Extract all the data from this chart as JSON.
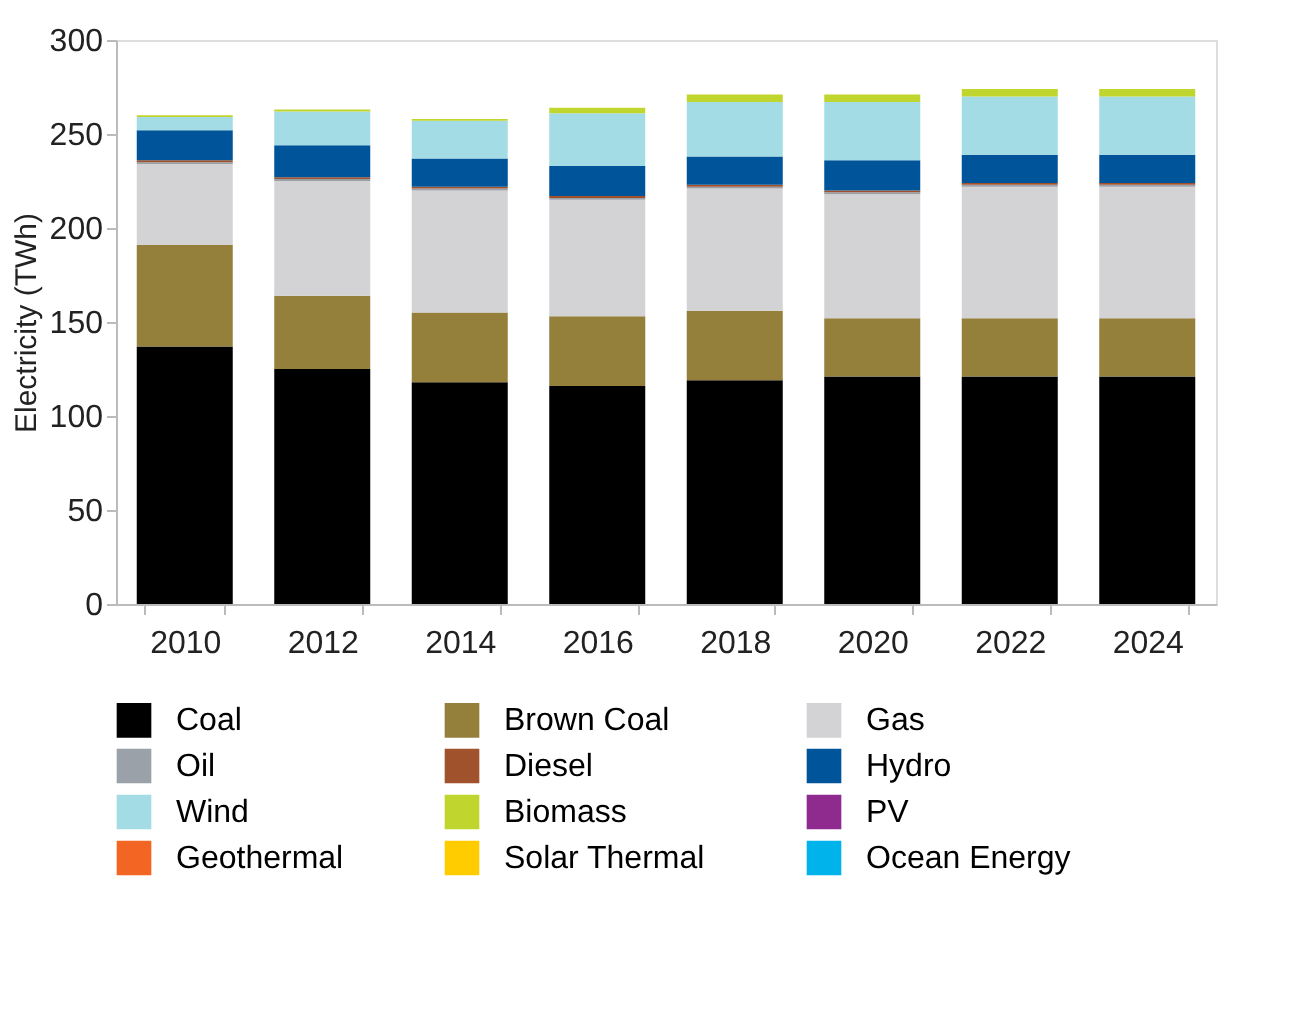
{
  "chart_data": {
    "type": "bar",
    "stacked": true,
    "ylabel": "Electricity (TWh)",
    "categories": [
      "2010",
      "2012",
      "2014",
      "2016",
      "2018",
      "2020",
      "2022",
      "2024"
    ],
    "ylim": [
      0,
      300
    ],
    "yticks": [
      0,
      50,
      100,
      150,
      200,
      250,
      300
    ],
    "grid": false,
    "legend": "bottom",
    "series": [
      {
        "name": "Coal",
        "color": "#000000",
        "values": [
          137,
          125,
          118,
          116,
          119,
          121,
          121,
          121
        ]
      },
      {
        "name": "Brown Coal",
        "color": "#947f3b",
        "values": [
          54,
          39,
          37,
          37,
          37,
          31,
          31,
          31
        ]
      },
      {
        "name": "Gas",
        "color": "#d3d3d5",
        "values": [
          43,
          61,
          65,
          62,
          65,
          66,
          70,
          70
        ]
      },
      {
        "name": "Oil",
        "color": "#9aa1a8",
        "values": [
          1,
          1,
          1,
          1,
          1,
          1,
          1,
          1
        ]
      },
      {
        "name": "Diesel",
        "color": "#a0522d",
        "values": [
          1,
          1,
          1,
          1,
          1,
          1,
          1,
          1
        ]
      },
      {
        "name": "Hydro",
        "color": "#00559a",
        "values": [
          16,
          17,
          15,
          16,
          15,
          16,
          15,
          15
        ]
      },
      {
        "name": "Wind",
        "color": "#a3dce4",
        "values": [
          7,
          18,
          20,
          28,
          29,
          31,
          31,
          31
        ]
      },
      {
        "name": "Biomass",
        "color": "#c1d52f",
        "values": [
          1,
          1,
          1,
          3,
          4,
          4,
          4,
          4
        ]
      },
      {
        "name": "PV",
        "color": "#8f2a8f",
        "values": [
          0,
          0,
          0,
          0,
          0,
          0,
          0,
          0
        ]
      },
      {
        "name": "Geothermal",
        "color": "#f26522",
        "values": [
          0,
          0,
          0,
          0,
          0,
          0,
          0,
          0
        ]
      },
      {
        "name": "Solar Thermal",
        "color": "#ffcc00",
        "values": [
          0,
          0,
          0,
          0,
          0,
          0,
          0,
          0
        ]
      },
      {
        "name": "Ocean Energy",
        "color": "#00b3ea",
        "values": [
          0,
          0,
          0,
          0,
          0,
          0,
          0,
          0
        ]
      }
    ]
  }
}
